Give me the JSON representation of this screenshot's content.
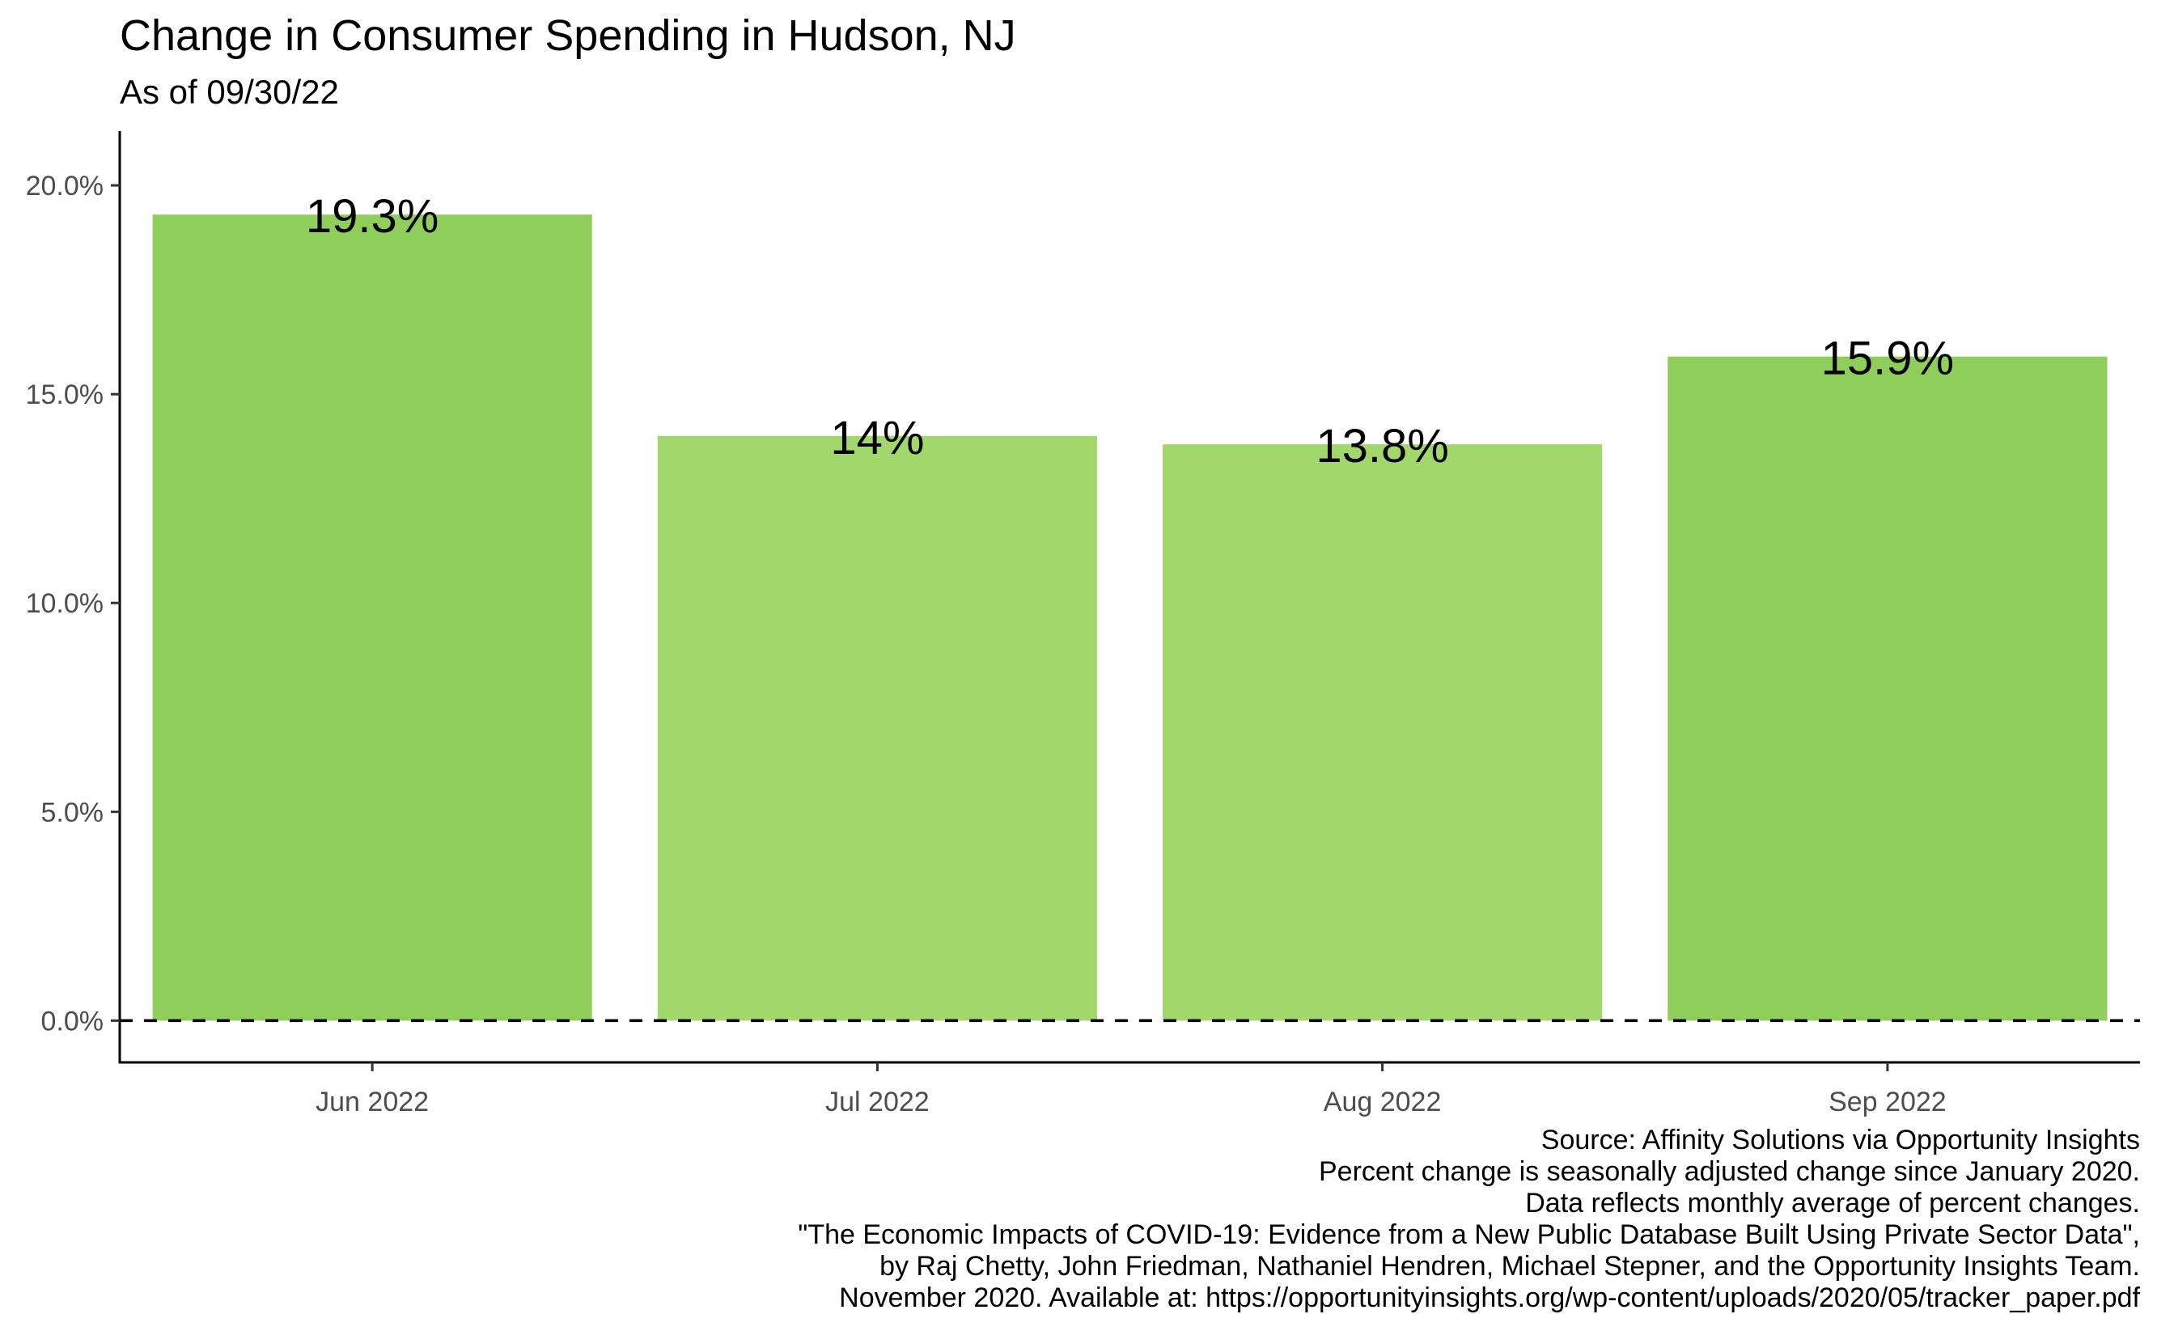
{
  "chart_data": {
    "type": "bar",
    "title": "Change in Consumer Spending in Hudson, NJ",
    "subtitle": "As of 09/30/22",
    "xlabel": "",
    "ylabel": "",
    "categories": [
      "Jun 2022",
      "Jul 2022",
      "Aug 2022",
      "Sep 2022"
    ],
    "values": [
      19.3,
      14.0,
      13.8,
      15.9
    ],
    "data_labels": [
      "19.3%",
      "14%",
      "13.8%",
      "15.9%"
    ],
    "bar_colors": [
      "#8fce5b",
      "#a2d76b",
      "#a2d76b",
      "#8fce5b"
    ],
    "ylim": [
      -1.0,
      21.3
    ],
    "yticks": [
      0,
      5,
      10,
      15,
      20
    ],
    "ytick_labels": [
      "0.0%",
      "5.0%",
      "10.0%",
      "15.0%",
      "20.0%"
    ],
    "reference_line": {
      "value": 0,
      "style": "dashed"
    },
    "grid": false,
    "legend": "none",
    "caption": [
      "Source: Affinity Solutions via Opportunity Insights",
      "Percent change is seasonally adjusted change since January 2020.",
      "Data reflects monthly average of percent changes.",
      "\"The Economic Impacts of COVID-19: Evidence from a New Public Database Built Using Private Sector Data\",",
      "by Raj Chetty, John Friedman, Nathaniel Hendren, Michael Stepner, and the Opportunity Insights Team.",
      "November 2020. Available at: https://opportunityinsights.org/wp-content/uploads/2020/05/tracker_paper.pdf"
    ]
  }
}
